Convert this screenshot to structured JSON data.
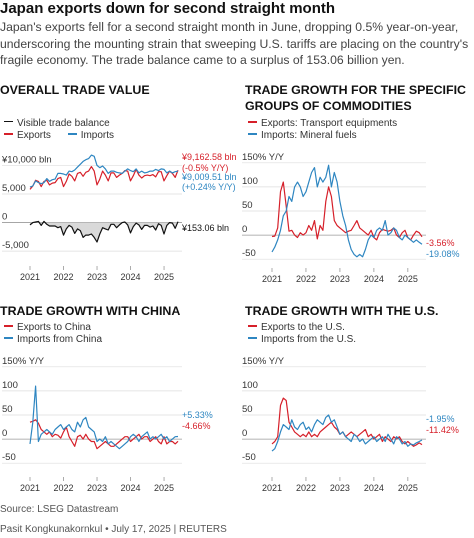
{
  "headline": "Japan exports down for second straight month",
  "subtitle": "Japan's exports fell for a second straight month in June, dropping 0.5% year-on-year, underscoring the mounting strain that sweeping U.S. tariffs are placing on the country's fragile economy. The trade balance came to a surplus of 153.06 billion yen.",
  "source": "Source: LSEG Datastream",
  "credit": "Pasit Kongkunakornkul • July 17, 2025 | REUTERS",
  "colors": {
    "red": "#d6202a",
    "blue": "#2e86c1",
    "black": "#111111",
    "gray": "#cccccc"
  },
  "chart_data": [
    {
      "title": "OVERALL TRADE VALUE",
      "type": "line",
      "x_ticks": [
        "2021",
        "2022",
        "2023",
        "2024",
        "2025"
      ],
      "x_range": [
        "2021-01",
        "2025-06"
      ],
      "y_ticks": [
        "¥10,000 bln",
        "5,000",
        "0",
        "-5,000"
      ],
      "y_tick_values": [
        10000,
        5000,
        0,
        -5000
      ],
      "ylim": [
        -6200,
        12000
      ],
      "series": [
        {
          "name": "Exports",
          "color": "#d6202a",
          "values": [
            5800,
            6400,
            7400,
            7200,
            6300,
            7200,
            7400,
            6600,
            6900,
            7000,
            7700,
            7900,
            6300,
            7200,
            8500,
            8100,
            7300,
            8600,
            8800,
            8100,
            8800,
            9000,
            9800,
            9000,
            6600,
            7600,
            9000,
            8300,
            7300,
            8700,
            8700,
            7900,
            8300,
            8600,
            9100,
            9000,
            7300,
            8200,
            9300,
            8300,
            7800,
            8200,
            8300,
            8200,
            8400,
            8000,
            8900,
            8900,
            7300,
            8200,
            9000,
            8600,
            7900,
            9162.58
          ]
        },
        {
          "name": "Imports",
          "color": "#2e86c1",
          "values": [
            6200,
            6400,
            7300,
            7000,
            6800,
            7000,
            7700,
            7200,
            7500,
            7600,
            8600,
            8600,
            8500,
            8300,
            9000,
            8900,
            9200,
            9700,
            10200,
            10700,
            11000,
            11200,
            11800,
            11600,
            10000,
            9600,
            9900,
            9400,
            8600,
            9000,
            9000,
            8800,
            8700,
            8600,
            9000,
            9400,
            9100,
            8900,
            9400,
            8700,
            9000,
            8700,
            8800,
            9000,
            9000,
            9300,
            9100,
            9400,
            9300,
            8700,
            9000,
            8700,
            8900,
            9009.51
          ]
        },
        {
          "name": "Visible trade balance",
          "color": "#111111",
          "values": [
            -400,
            0,
            100,
            200,
            -500,
            200,
            -300,
            -600,
            -600,
            -600,
            -900,
            -700,
            -2200,
            -1100,
            -500,
            -800,
            -1900,
            -1100,
            -1400,
            -2600,
            -2200,
            -2200,
            -2000,
            -2600,
            -3400,
            -2000,
            -900,
            -1100,
            -1300,
            -300,
            -300,
            -900,
            -400,
            0,
            100,
            -400,
            -1800,
            -700,
            -100,
            -400,
            -1200,
            -500,
            -500,
            -800,
            -600,
            -1300,
            -200,
            -500,
            -2000,
            -500,
            0,
            -100,
            -1000,
            153.06
          ]
        }
      ],
      "annotations": [
        {
          "text": "¥9,162.58 bln",
          "color": "#d6202a"
        },
        {
          "text": "(-0.5% Y/Y)",
          "color": "#d6202a"
        },
        {
          "text": "¥9,009.51 bln",
          "color": "#2e86c1"
        },
        {
          "text": "(+0.24% Y/Y)",
          "color": "#2e86c1"
        },
        {
          "text": "¥153.06 bln",
          "color": "#111111"
        }
      ],
      "legend_position": "top-left",
      "grid": "horizontal"
    },
    {
      "title": "TRADE GROWTH FOR THE SPECIFIC GROUPS OF COMMODITIES",
      "type": "line",
      "x_ticks": [
        "2021",
        "2022",
        "2023",
        "2024",
        "2025"
      ],
      "x_range": [
        "2021-01",
        "2025-06"
      ],
      "y_ticks": [
        "150% Y/Y",
        "100",
        "50",
        "0",
        "-50"
      ],
      "y_tick_values": [
        150,
        100,
        50,
        0,
        -50
      ],
      "ylim": [
        -60,
        160
      ],
      "series": [
        {
          "name": "Exports: Transport equipments",
          "color": "#d6202a",
          "values": [
            -3,
            -2,
            15,
            90,
            110,
            60,
            8,
            10,
            0,
            -5,
            5,
            0,
            5,
            20,
            10,
            30,
            -8,
            20,
            10,
            70,
            100,
            80,
            30,
            20,
            15,
            10,
            5,
            8,
            10,
            20,
            30,
            15,
            10,
            5,
            0,
            10,
            -5,
            -10,
            5,
            12,
            10,
            8,
            10,
            15,
            0,
            -5,
            5,
            10,
            -5,
            -10,
            0,
            8,
            5,
            -3.56
          ]
        },
        {
          "name": "Imports: Mineral fuels",
          "color": "#2e86c1",
          "values": [
            -35,
            -25,
            -10,
            10,
            40,
            50,
            80,
            70,
            100,
            110,
            100,
            80,
            90,
            110,
            130,
            140,
            100,
            120,
            110,
            120,
            145,
            100,
            130,
            110,
            70,
            40,
            20,
            -10,
            -30,
            -40,
            -45,
            -40,
            -45,
            -30,
            -10,
            0,
            -5,
            10,
            15,
            10,
            30,
            0,
            5,
            15,
            10,
            -5,
            -10,
            0,
            -5,
            -10,
            -15,
            -10,
            -15,
            -19.08
          ]
        }
      ],
      "annotations": [
        {
          "text": "-3.56%",
          "color": "#d6202a"
        },
        {
          "text": "-19.08%",
          "color": "#2e86c1"
        }
      ],
      "legend_position": "top-left",
      "grid": "horizontal"
    },
    {
      "title": "TRADE GROWTH WITH CHINA",
      "type": "line",
      "x_ticks": [
        "2021",
        "2022",
        "2023",
        "2024",
        "2025"
      ],
      "x_range": [
        "2021-01",
        "2025-06"
      ],
      "y_ticks": [
        "150% Y/Y",
        "100",
        "50",
        "0",
        "-50"
      ],
      "y_tick_values": [
        150,
        100,
        50,
        0,
        -50
      ],
      "ylim": [
        -60,
        160
      ],
      "series": [
        {
          "name": "Exports to China",
          "color": "#d6202a",
          "values": [
            35,
            37,
            40,
            33,
            20,
            15,
            10,
            15,
            5,
            10,
            8,
            2,
            15,
            25,
            5,
            -5,
            -15,
            5,
            8,
            0,
            10,
            0,
            -5,
            -5,
            -20,
            -15,
            -10,
            -5,
            -10,
            -15,
            -15,
            -10,
            -5,
            0,
            5,
            5,
            -5,
            0,
            5,
            10,
            0,
            5,
            5,
            -5,
            0,
            5,
            -5,
            -10,
            5,
            -10,
            -5,
            -5,
            -10,
            -4.66
          ]
        },
        {
          "name": "Imports from China",
          "color": "#2e86c1",
          "values": [
            -10,
            35,
            110,
            -5,
            10,
            15,
            20,
            15,
            10,
            20,
            25,
            30,
            20,
            25,
            30,
            20,
            15,
            35,
            25,
            40,
            45,
            25,
            20,
            15,
            -5,
            0,
            -5,
            5,
            -10,
            -5,
            -10,
            -15,
            -20,
            -15,
            -10,
            -5,
            5,
            10,
            5,
            -5,
            5,
            10,
            15,
            0,
            5,
            0,
            5,
            10,
            0,
            5,
            -5,
            0,
            5,
            5.33
          ]
        }
      ],
      "annotations": [
        {
          "text": "+5.33%",
          "color": "#2e86c1"
        },
        {
          "text": "-4.66%",
          "color": "#d6202a"
        }
      ],
      "legend_position": "top-left",
      "grid": "horizontal"
    },
    {
      "title": "TRADE GROWTH WITH THE U.S.",
      "type": "line",
      "x_ticks": [
        "2021",
        "2022",
        "2023",
        "2024",
        "2025"
      ],
      "x_range": [
        "2021-01",
        "2025-06"
      ],
      "y_ticks": [
        "150% Y/Y",
        "100",
        "50",
        "0",
        "-50"
      ],
      "y_tick_values": [
        150,
        100,
        50,
        0,
        -50
      ],
      "ylim": [
        -60,
        160
      ],
      "series": [
        {
          "name": "Exports to the U.S.",
          "color": "#d6202a",
          "values": [
            -10,
            -5,
            5,
            70,
            85,
            80,
            35,
            25,
            15,
            10,
            5,
            10,
            5,
            15,
            5,
            10,
            5,
            15,
            20,
            25,
            30,
            35,
            25,
            20,
            10,
            15,
            5,
            10,
            15,
            10,
            5,
            10,
            15,
            20,
            5,
            10,
            0,
            5,
            10,
            -5,
            5,
            0,
            -5,
            5,
            0,
            5,
            -5,
            -10,
            -5,
            -10,
            -15,
            -12,
            -8,
            -11.42
          ]
        },
        {
          "name": "Imports from the U.S.",
          "color": "#2e86c1",
          "values": [
            -25,
            -20,
            -5,
            15,
            30,
            25,
            20,
            40,
            25,
            20,
            30,
            35,
            20,
            25,
            15,
            30,
            40,
            35,
            30,
            45,
            50,
            35,
            40,
            25,
            10,
            15,
            5,
            0,
            -5,
            10,
            5,
            -5,
            0,
            -10,
            -5,
            0,
            5,
            -5,
            0,
            5,
            -5,
            10,
            0,
            -10,
            5,
            0,
            -10,
            -5,
            -15,
            -10,
            -12,
            -8,
            -5,
            -1.95
          ]
        }
      ],
      "annotations": [
        {
          "text": "-1.95%",
          "color": "#2e86c1"
        },
        {
          "text": "-11.42%",
          "color": "#d6202a"
        }
      ],
      "legend_position": "top-left",
      "grid": "horizontal"
    }
  ]
}
